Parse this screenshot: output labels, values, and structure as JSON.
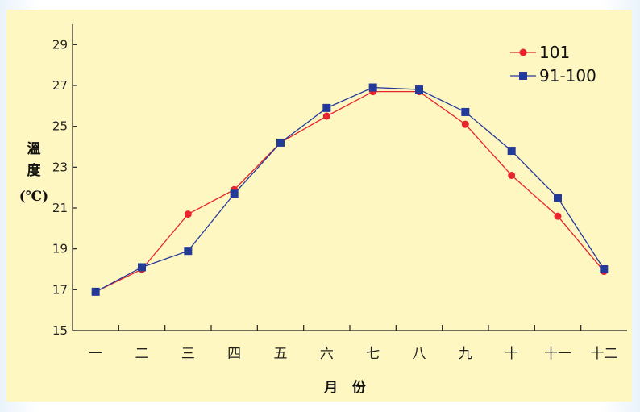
{
  "chart_data": {
    "type": "line",
    "categories": [
      "一",
      "二",
      "三",
      "四",
      "五",
      "六",
      "七",
      "八",
      "九",
      "十",
      "十一",
      "十二"
    ],
    "series": [
      {
        "name": "101",
        "color": "#e8232b",
        "marker": "circle",
        "values": [
          16.9,
          18.0,
          20.7,
          21.9,
          24.2,
          25.5,
          26.7,
          26.7,
          25.1,
          22.6,
          20.6,
          17.9
        ]
      },
      {
        "name": "91-100",
        "color": "#243a99",
        "marker": "square",
        "values": [
          16.9,
          18.1,
          18.9,
          21.7,
          24.2,
          25.9,
          26.9,
          26.8,
          25.7,
          23.8,
          21.5,
          18.0
        ]
      }
    ],
    "ylim": [
      15,
      30
    ],
    "yticks": [
      15,
      17,
      19,
      21,
      23,
      25,
      27,
      29
    ],
    "ylabel": [
      "溫",
      "度",
      "(℃)"
    ],
    "xlabel": "月   份",
    "legend_position": "top-right",
    "grid": false
  }
}
